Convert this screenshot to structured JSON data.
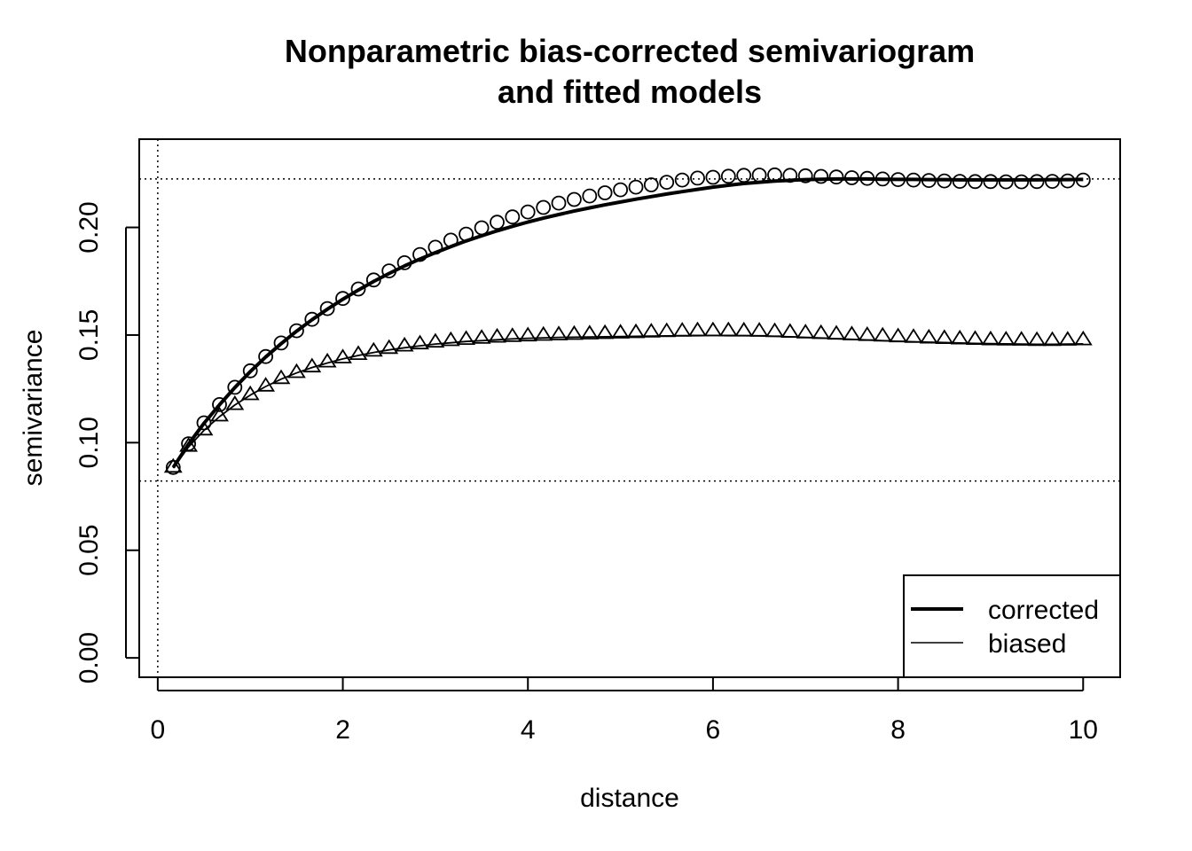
{
  "chart_data": {
    "type": "scatter",
    "title": [
      "Nonparametric bias-corrected semivariogram",
      "and fitted models"
    ],
    "xlabel": "distance",
    "ylabel": "semivariance",
    "xlim": [
      -0.2,
      10.4
    ],
    "ylim": [
      -0.009,
      0.241
    ],
    "xticks": [
      "0",
      "2",
      "4",
      "6",
      "8",
      "10"
    ],
    "xtick_values": [
      0,
      2,
      4,
      6,
      8,
      10
    ],
    "yticks": [
      "0.00",
      "0.05",
      "0.10",
      "0.15",
      "0.20"
    ],
    "ytick_values": [
      0,
      0.05,
      0.1,
      0.15,
      0.2
    ],
    "reference_lines": {
      "vertical": [
        0
      ],
      "horizontal": [
        0.0822,
        0.2225
      ],
      "style": "dotted"
    },
    "x": [
      0.167,
      0.333,
      0.5,
      0.667,
      0.833,
      1.0,
      1.167,
      1.333,
      1.5,
      1.667,
      1.833,
      2.0,
      2.167,
      2.333,
      2.5,
      2.667,
      2.833,
      3.0,
      3.167,
      3.333,
      3.5,
      3.667,
      3.833,
      4.0,
      4.167,
      4.333,
      4.5,
      4.667,
      4.833,
      5.0,
      5.167,
      5.333,
      5.5,
      5.667,
      5.833,
      6.0,
      6.167,
      6.333,
      6.5,
      6.667,
      6.833,
      7.0,
      7.167,
      7.333,
      7.5,
      7.667,
      7.833,
      8.0,
      8.167,
      8.333,
      8.5,
      8.667,
      8.833,
      9.0,
      9.167,
      9.333,
      9.5,
      9.667,
      9.833,
      10.0
    ],
    "series": [
      {
        "name": "corrected",
        "marker": "circle",
        "points": [
          0.0885,
          0.0995,
          0.1092,
          0.1177,
          0.1257,
          0.1334,
          0.14,
          0.1463,
          0.152,
          0.1573,
          0.1623,
          0.167,
          0.1714,
          0.1756,
          0.1798,
          0.1836,
          0.1874,
          0.1908,
          0.1941,
          0.1969,
          0.1998,
          0.2024,
          0.2049,
          0.2072,
          0.2093,
          0.2113,
          0.213,
          0.2146,
          0.2161,
          0.2175,
          0.2187,
          0.2198,
          0.221,
          0.222,
          0.2229,
          0.2233,
          0.2238,
          0.2242,
          0.2243,
          0.2244,
          0.2242,
          0.224,
          0.2237,
          0.2234,
          0.2231,
          0.2228,
          0.2225,
          0.2222,
          0.222,
          0.2218,
          0.2216,
          0.2214,
          0.2213,
          0.2213,
          0.2212,
          0.2212,
          0.2213,
          0.2214,
          0.2216,
          0.222
        ],
        "fit": [
          0.0885,
          0.0993,
          0.109,
          0.1176,
          0.1256,
          0.133,
          0.1398,
          0.146,
          0.1518,
          0.1571,
          0.162,
          0.1666,
          0.1709,
          0.1749,
          0.1786,
          0.1821,
          0.1853,
          0.1883,
          0.1911,
          0.1937,
          0.1961,
          0.1984,
          0.2005,
          0.2025,
          0.2043,
          0.206,
          0.2076,
          0.2091,
          0.2105,
          0.2118,
          0.2131,
          0.2143,
          0.2155,
          0.2166,
          0.2177,
          0.2187,
          0.2196,
          0.2204,
          0.221,
          0.2215,
          0.2219,
          0.2222,
          0.2224,
          0.2225,
          0.2225,
          0.2225,
          0.2224,
          0.2223,
          0.2223,
          0.2222,
          0.2222,
          0.2221,
          0.2221,
          0.2221,
          0.2221,
          0.2221,
          0.2221,
          0.2222,
          0.2222,
          0.2223
        ]
      },
      {
        "name": "biased",
        "marker": "triangle",
        "points": [
          0.0889,
          0.0986,
          0.1062,
          0.1127,
          0.118,
          0.1226,
          0.1266,
          0.1301,
          0.1329,
          0.1355,
          0.1378,
          0.1397,
          0.1413,
          0.1428,
          0.1441,
          0.1452,
          0.1462,
          0.147,
          0.1477,
          0.1483,
          0.1488,
          0.1493,
          0.1496,
          0.1499,
          0.1502,
          0.1504,
          0.1506,
          0.1508,
          0.151,
          0.1512,
          0.1514,
          0.1517,
          0.1519,
          0.1521,
          0.1523,
          0.1523,
          0.1523,
          0.1522,
          0.1521,
          0.1519,
          0.1516,
          0.1513,
          0.151,
          0.1507,
          0.1504,
          0.1501,
          0.1498,
          0.1495,
          0.1492,
          0.1489,
          0.1487,
          0.1485,
          0.1483,
          0.1481,
          0.148,
          0.1479,
          0.1478,
          0.1478,
          0.1479,
          0.1481
        ],
        "fit": [
          0.0882,
          0.098,
          0.1057,
          0.1121,
          0.1175,
          0.1221,
          0.1261,
          0.1295,
          0.1324,
          0.1349,
          0.137,
          0.1389,
          0.1405,
          0.1419,
          0.1431,
          0.1441,
          0.145,
          0.1458,
          0.1464,
          0.147,
          0.1474,
          0.1478,
          0.1482,
          0.1485,
          0.1487,
          0.1489,
          0.149,
          0.1491,
          0.1492,
          0.1493,
          0.1494,
          0.1495,
          0.1496,
          0.1497,
          0.1497,
          0.1498,
          0.1497,
          0.1497,
          0.1496,
          0.1494,
          0.1492,
          0.1489,
          0.1486,
          0.1483,
          0.148,
          0.1477,
          0.1474,
          0.1471,
          0.1469,
          0.1467,
          0.1465,
          0.1463,
          0.1461,
          0.146,
          0.1459,
          0.1458,
          0.1457,
          0.1457,
          0.1458,
          0.1459
        ]
      }
    ],
    "legend": {
      "position": "bottom-right",
      "entries": [
        {
          "label": "corrected",
          "line": "thick"
        },
        {
          "label": "biased",
          "line": "thin"
        }
      ]
    },
    "grid": false
  }
}
